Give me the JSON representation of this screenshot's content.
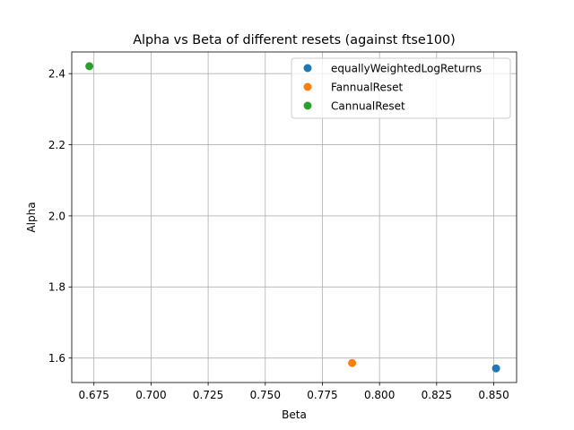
{
  "chart_data": {
    "type": "scatter",
    "title": "Alpha vs Beta of different resets (against ftse100)",
    "xlabel": "Beta",
    "ylabel": "Alpha",
    "xlim": [
      0.6653,
      0.86
    ],
    "ylim": [
      1.5312,
      2.461
    ],
    "xticks": [
      0.675,
      0.7,
      0.725,
      0.75,
      0.775,
      0.8,
      0.825,
      0.85
    ],
    "xtick_labels": [
      "0.675",
      "0.700",
      "0.725",
      "0.750",
      "0.775",
      "0.800",
      "0.825",
      "0.850"
    ],
    "yticks": [
      1.6,
      1.8,
      2.0,
      2.2,
      2.4
    ],
    "ytick_labels": [
      "1.6",
      "1.8",
      "2.0",
      "2.2",
      "2.4"
    ],
    "grid": true,
    "legend_position": "top-right",
    "series": [
      {
        "name": "equallyWeightedLogReturns",
        "color": "#1f77b4",
        "points": [
          {
            "x": 0.851,
            "y": 1.571
          }
        ]
      },
      {
        "name": "FannualReset",
        "color": "#ff7f0e",
        "points": [
          {
            "x": 0.788,
            "y": 1.586
          }
        ]
      },
      {
        "name": "CannualReset",
        "color": "#2ca02c",
        "points": [
          {
            "x": 0.673,
            "y": 2.421
          }
        ]
      }
    ]
  }
}
